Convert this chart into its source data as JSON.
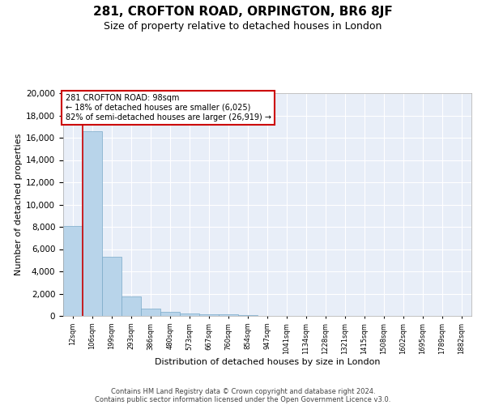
{
  "title1": "281, CROFTON ROAD, ORPINGTON, BR6 8JF",
  "title2": "Size of property relative to detached houses in London",
  "xlabel": "Distribution of detached houses by size in London",
  "ylabel": "Number of detached properties",
  "categories": [
    "12sqm",
    "106sqm",
    "199sqm",
    "293sqm",
    "386sqm",
    "480sqm",
    "573sqm",
    "667sqm",
    "760sqm",
    "854sqm",
    "947sqm",
    "1041sqm",
    "1134sqm",
    "1228sqm",
    "1321sqm",
    "1415sqm",
    "1508sqm",
    "1602sqm",
    "1695sqm",
    "1789sqm",
    "1882sqm"
  ],
  "values": [
    8100,
    16600,
    5300,
    1750,
    650,
    350,
    225,
    175,
    125,
    60,
    30,
    15,
    10,
    5,
    3,
    2,
    1,
    1,
    1,
    0,
    0
  ],
  "bar_color": "#b8d4ea",
  "bar_edge_color": "#7aaac8",
  "highlight_color": "#cc0000",
  "annotation_text": "281 CROFTON ROAD: 98sqm\n← 18% of detached houses are smaller (6,025)\n82% of semi-detached houses are larger (26,919) →",
  "ylim": [
    0,
    20000
  ],
  "yticks": [
    0,
    2000,
    4000,
    6000,
    8000,
    10000,
    12000,
    14000,
    16000,
    18000,
    20000
  ],
  "bg_color": "#e8eef8",
  "footer1": "Contains HM Land Registry data © Crown copyright and database right 2024.",
  "footer2": "Contains public sector information licensed under the Open Government Licence v3.0.",
  "title1_fontsize": 11,
  "title2_fontsize": 9,
  "annotation_box_color": "#cc0000",
  "grid_color": "#ffffff",
  "axis_label_fontsize": 8,
  "tick_fontsize": 7.5,
  "xtick_fontsize": 6
}
